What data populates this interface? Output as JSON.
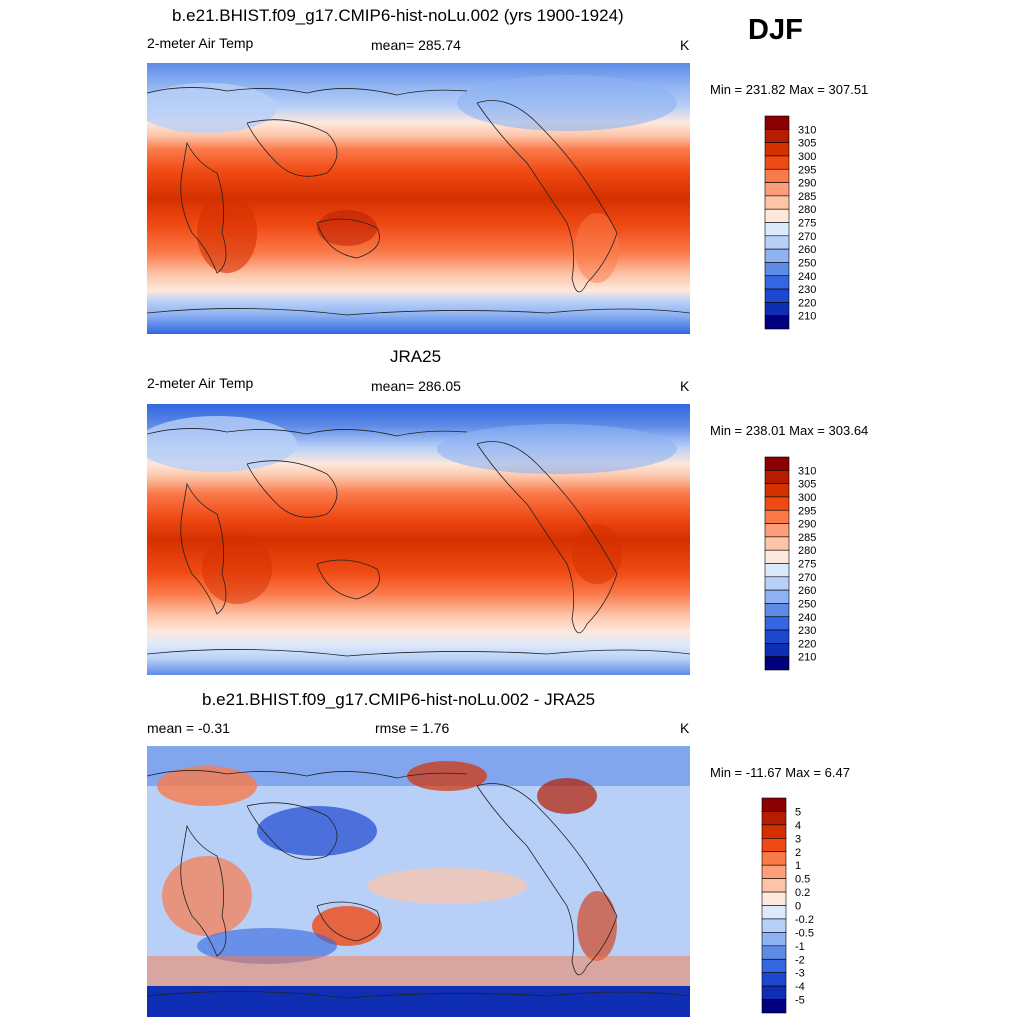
{
  "season": "DJF",
  "panels": [
    {
      "title": "b.e21.BHIST.f09_g17.CMIP6-hist-noLu.002 (yrs 1900-1924)",
      "left_label": "2-meter Air Temp",
      "center_label": "mean= 285.74",
      "right_label": "K",
      "minmax": "Min = 231.82 Max = 307.51",
      "colorbar_labels": [
        "310",
        "305",
        "300",
        "295",
        "290",
        "285",
        "280",
        "275",
        "270",
        "260",
        "250",
        "240",
        "230",
        "220",
        "210"
      ]
    },
    {
      "title": "JRA25",
      "left_label": "2-meter Air Temp",
      "center_label": "mean= 286.05",
      "right_label": "K",
      "minmax": "Min = 238.01 Max = 303.64",
      "colorbar_labels": [
        "310",
        "305",
        "300",
        "295",
        "290",
        "285",
        "280",
        "275",
        "270",
        "260",
        "250",
        "240",
        "230",
        "220",
        "210"
      ]
    },
    {
      "title": "b.e21.BHIST.f09_g17.CMIP6-hist-noLu.002 - JRA25",
      "left_label": "mean =  -0.31",
      "center_label": "rmse =   1.76",
      "right_label": "K",
      "minmax": "Min = -11.67 Max =   6.47",
      "colorbar_labels": [
        "5",
        "4",
        "3",
        "2",
        "1",
        "0.5",
        "0.2",
        "0",
        "-0.2",
        "-0.5",
        "-1",
        "-2",
        "-3",
        "-4",
        "-5"
      ]
    }
  ],
  "palette": [
    "#8b0000",
    "#b51c00",
    "#d53000",
    "#f04a14",
    "#fa7a4a",
    "#fc9e7a",
    "#fdc4a8",
    "#fde8dc",
    "#dde9fc",
    "#b8d0f8",
    "#8eb2f2",
    "#5d8be6",
    "#3366e0",
    "#1d47cf",
    "#0e2eb4",
    "#00007f"
  ]
}
